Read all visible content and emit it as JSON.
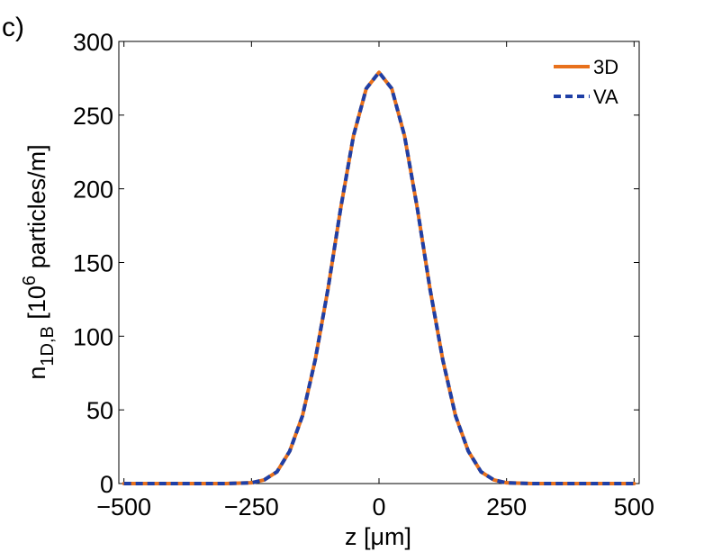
{
  "panel_label": "c)",
  "chart_data": {
    "type": "line",
    "title": "",
    "xlabel": "z [μm]",
    "ylabel": {
      "base": "n",
      "subscript": "1D,B",
      "bracket_open": " [10",
      "superscript": "6",
      "rest": " particles/m]"
    },
    "xlim": [
      -510,
      510
    ],
    "ylim": [
      0,
      300
    ],
    "xticks": [
      -500,
      -250,
      0,
      250,
      500
    ],
    "xtick_labels": [
      "−500",
      "−250",
      "0",
      "250",
      "500"
    ],
    "yticks": [
      0,
      50,
      100,
      150,
      200,
      250,
      300
    ],
    "ytick_labels": [
      "0",
      "50",
      "100",
      "150",
      "200",
      "250",
      "300"
    ],
    "grid": false,
    "legend_position": "top-right",
    "series": [
      {
        "name": "3D",
        "color": "#e8711c",
        "style": "solid",
        "x": [
          -500,
          -400,
          -300,
          -250,
          -225,
          -200,
          -175,
          -150,
          -125,
          -100,
          -75,
          -50,
          -25,
          0,
          25,
          50,
          75,
          100,
          125,
          150,
          175,
          200,
          225,
          250,
          300,
          400,
          500
        ],
        "y": [
          0,
          0,
          0,
          0.5,
          2.5,
          8,
          22,
          46,
          84,
          132,
          187,
          236,
          268,
          279,
          268,
          236,
          187,
          132,
          84,
          46,
          22,
          8,
          2.5,
          0.5,
          0,
          0,
          0
        ]
      },
      {
        "name": "VA",
        "color": "#1f3fa6",
        "style": "dashed",
        "x": [
          -500,
          -400,
          -300,
          -250,
          -225,
          -200,
          -175,
          -150,
          -125,
          -100,
          -75,
          -50,
          -25,
          0,
          25,
          50,
          75,
          100,
          125,
          150,
          175,
          200,
          225,
          250,
          300,
          400,
          500
        ],
        "y": [
          0,
          0,
          0,
          0.5,
          2.5,
          8,
          22,
          46,
          84,
          132,
          187,
          236,
          268,
          279,
          268,
          236,
          187,
          132,
          84,
          46,
          22,
          8,
          2.5,
          0.5,
          0,
          0,
          0
        ]
      }
    ]
  }
}
